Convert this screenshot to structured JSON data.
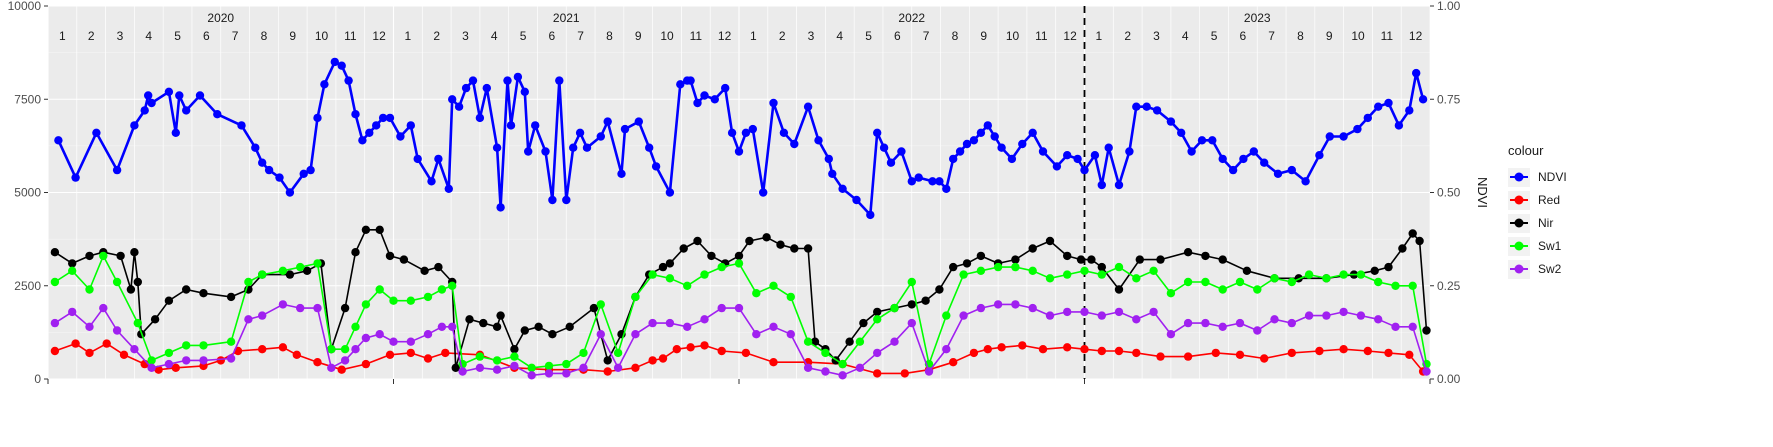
{
  "chart_data": {
    "type": "line",
    "title": "",
    "y_left": {
      "range": [
        0,
        10000
      ],
      "ticks": [
        0,
        2500,
        5000,
        7500,
        10000
      ],
      "tick_labels": [
        "0",
        "2500",
        "5000",
        "7500",
        "10000"
      ]
    },
    "y_right": {
      "label": "NDVI",
      "range": [
        0,
        1
      ],
      "ticks": [
        0,
        0.25,
        0.5,
        0.75,
        1
      ],
      "tick_labels": [
        "0.00",
        "0.25",
        "0.50",
        "0.75",
        "1.00"
      ]
    },
    "x_range": [
      2020.0,
      2024.0
    ],
    "years": [
      {
        "label": "2020",
        "start": 2020.0,
        "end": 2021.0
      },
      {
        "label": "2021",
        "start": 2021.0,
        "end": 2022.0
      },
      {
        "label": "2022",
        "start": 2022.0,
        "end": 2023.0
      },
      {
        "label": "2023",
        "start": 2023.0,
        "end": 2024.0
      }
    ],
    "month_labels": [
      "1",
      "2",
      "3",
      "4",
      "5",
      "6",
      "7",
      "8",
      "9",
      "10",
      "11",
      "12"
    ],
    "vline": 2023.0,
    "grid": true,
    "legend": {
      "title": "colour",
      "position": "right"
    },
    "series": [
      {
        "name": "NDVI",
        "color": "#0000ff",
        "axis": "right",
        "x": [
          2020.03,
          2020.08,
          2020.14,
          2020.2,
          2020.25,
          2020.28,
          2020.29,
          2020.3,
          2020.35,
          2020.37,
          2020.38,
          2020.4,
          2020.44,
          2020.49,
          2020.56,
          2020.6,
          2020.62,
          2020.64,
          2020.67,
          2020.7,
          2020.74,
          2020.76,
          2020.78,
          2020.8,
          2020.83,
          2020.85,
          2020.87,
          2020.89,
          2020.91,
          2020.93,
          2020.95,
          2020.97,
          2020.99,
          2021.02,
          2021.05,
          2021.07,
          2021.11,
          2021.13,
          2021.16,
          2021.17,
          2021.19,
          2021.21,
          2021.23,
          2021.25,
          2021.27,
          2021.3,
          2021.31,
          2021.33,
          2021.34,
          2021.36,
          2021.38,
          2021.39,
          2021.41,
          2021.44,
          2021.46,
          2021.48,
          2021.5,
          2021.52,
          2021.54,
          2021.56,
          2021.6,
          2021.62,
          2021.66,
          2021.67,
          2021.71,
          2021.74,
          2021.76,
          2021.8,
          2021.83,
          2021.85,
          2021.86,
          2021.88,
          2021.9,
          2021.93,
          2021.96,
          2021.98,
          2022.0,
          2022.02,
          2022.04,
          2022.07,
          2022.1,
          2022.13,
          2022.16,
          2022.2,
          2022.23,
          2022.26,
          2022.27,
          2022.3,
          2022.34,
          2022.38,
          2022.4,
          2022.42,
          2022.44,
          2022.47,
          2022.5,
          2022.52,
          2022.56,
          2022.58,
          2022.6,
          2022.62,
          2022.64,
          2022.66,
          2022.68,
          2022.7,
          2022.72,
          2022.74,
          2022.76,
          2022.79,
          2022.82,
          2022.85,
          2022.88,
          2022.92,
          2022.95,
          2022.98,
          2023.0,
          2023.03,
          2023.05,
          2023.07,
          2023.1,
          2023.13,
          2023.15,
          2023.18,
          2023.21,
          2023.25,
          2023.28,
          2023.31,
          2023.34,
          2023.37,
          2023.4,
          2023.43,
          2023.46,
          2023.49,
          2023.52,
          2023.56,
          2023.6,
          2023.64,
          2023.68,
          2023.71,
          2023.75,
          2023.79,
          2023.82,
          2023.85,
          2023.88,
          2023.91,
          2023.94,
          2023.96,
          2023.98
        ],
        "y": [
          0.64,
          0.54,
          0.66,
          0.56,
          0.68,
          0.72,
          0.76,
          0.74,
          0.77,
          0.66,
          0.76,
          0.72,
          0.76,
          0.71,
          0.68,
          0.62,
          0.58,
          0.56,
          0.54,
          0.5,
          0.55,
          0.56,
          0.7,
          0.79,
          0.85,
          0.84,
          0.8,
          0.71,
          0.64,
          0.66,
          0.68,
          0.7,
          0.7,
          0.65,
          0.68,
          0.59,
          0.53,
          0.59,
          0.51,
          0.75,
          0.73,
          0.78,
          0.8,
          0.7,
          0.78,
          0.62,
          0.46,
          0.8,
          0.68,
          0.81,
          0.77,
          0.61,
          0.68,
          0.61,
          0.48,
          0.8,
          0.48,
          0.62,
          0.66,
          0.62,
          0.65,
          0.69,
          0.55,
          0.67,
          0.69,
          0.62,
          0.57,
          0.5,
          0.79,
          0.8,
          0.8,
          0.74,
          0.76,
          0.75,
          0.78,
          0.66,
          0.61,
          0.66,
          0.67,
          0.5,
          0.74,
          0.66,
          0.63,
          0.73,
          0.64,
          0.59,
          0.55,
          0.51,
          0.48,
          0.44,
          0.66,
          0.62,
          0.58,
          0.61,
          0.53,
          0.54,
          0.53,
          0.53,
          0.51,
          0.59,
          0.61,
          0.63,
          0.64,
          0.66,
          0.68,
          0.65,
          0.62,
          0.59,
          0.63,
          0.66,
          0.61,
          0.57,
          0.6,
          0.59,
          0.56,
          0.6,
          0.52,
          0.62,
          0.52,
          0.61,
          0.73,
          0.73,
          0.72,
          0.69,
          0.66,
          0.61,
          0.64,
          0.64,
          0.59,
          0.56,
          0.59,
          0.61,
          0.58,
          0.55,
          0.56,
          0.53,
          0.6,
          0.65,
          0.65,
          0.67,
          0.7,
          0.73,
          0.74,
          0.68,
          0.72,
          0.82,
          0.75
        ]
      },
      {
        "name": "Red",
        "color": "#ff0000",
        "axis": "left",
        "x": [
          2020.02,
          2020.08,
          2020.12,
          2020.17,
          2020.22,
          2020.28,
          2020.32,
          2020.37,
          2020.45,
          2020.5,
          2020.55,
          2020.62,
          2020.68,
          2020.72,
          2020.78,
          2020.85,
          2020.92,
          2020.99,
          2021.05,
          2021.1,
          2021.15,
          2021.25,
          2021.35,
          2021.45,
          2021.55,
          2021.62,
          2021.7,
          2021.75,
          2021.78,
          2021.82,
          2021.86,
          2021.9,
          2021.95,
          2022.02,
          2022.1,
          2022.2,
          2022.3,
          2022.4,
          2022.48,
          2022.55,
          2022.62,
          2022.68,
          2022.72,
          2022.76,
          2022.82,
          2022.88,
          2022.95,
          2023.0,
          2023.05,
          2023.1,
          2023.15,
          2023.22,
          2023.3,
          2023.38,
          2023.45,
          2023.52,
          2023.6,
          2023.68,
          2023.75,
          2023.82,
          2023.88,
          2023.94,
          2023.98
        ],
        "y": [
          750,
          950,
          700,
          950,
          650,
          400,
          250,
          300,
          350,
          500,
          750,
          800,
          850,
          650,
          450,
          250,
          400,
          650,
          700,
          550,
          700,
          650,
          300,
          250,
          250,
          200,
          300,
          500,
          550,
          800,
          850,
          900,
          750,
          700,
          450,
          450,
          400,
          150,
          150,
          250,
          450,
          700,
          800,
          850,
          900,
          800,
          850,
          800,
          750,
          750,
          700,
          600,
          600,
          700,
          650,
          550,
          700,
          750,
          800,
          750,
          700,
          650,
          200
        ]
      },
      {
        "name": "Nir",
        "color": "#000000",
        "axis": "left",
        "x": [
          2020.02,
          2020.07,
          2020.12,
          2020.16,
          2020.21,
          2020.24,
          2020.25,
          2020.26,
          2020.27,
          2020.31,
          2020.35,
          2020.4,
          2020.45,
          2020.53,
          2020.58,
          2020.62,
          2020.7,
          2020.75,
          2020.79,
          2020.82,
          2020.86,
          2020.89,
          2020.92,
          2020.96,
          2020.99,
          2021.03,
          2021.09,
          2021.13,
          2021.17,
          2021.18,
          2021.22,
          2021.26,
          2021.3,
          2021.31,
          2021.35,
          2021.38,
          2021.42,
          2021.46,
          2021.51,
          2021.58,
          2021.62,
          2021.66,
          2021.7,
          2021.74,
          2021.78,
          2021.8,
          2021.84,
          2021.88,
          2021.92,
          2021.96,
          2022.0,
          2022.03,
          2022.08,
          2022.12,
          2022.16,
          2022.2,
          2022.22,
          2022.25,
          2022.28,
          2022.32,
          2022.36,
          2022.4,
          2022.45,
          2022.5,
          2022.54,
          2022.58,
          2022.62,
          2022.66,
          2022.7,
          2022.75,
          2022.8,
          2022.85,
          2022.9,
          2022.95,
          2022.99,
          2023.02,
          2023.05,
          2023.1,
          2023.16,
          2023.22,
          2023.3,
          2023.35,
          2023.4,
          2023.47,
          2023.55,
          2023.62,
          2023.7,
          2023.78,
          2023.84,
          2023.88,
          2023.92,
          2023.95,
          2023.97,
          2023.99
        ],
        "y": [
          3400,
          3100,
          3300,
          3400,
          3300,
          2400,
          3400,
          2600,
          1200,
          1600,
          2100,
          2400,
          2300,
          2200,
          2400,
          2800,
          2800,
          2900,
          3100,
          800,
          1900,
          3400,
          4000,
          4000,
          3300,
          3200,
          2900,
          3000,
          2600,
          300,
          1600,
          1500,
          1400,
          1700,
          800,
          1300,
          1400,
          1200,
          1400,
          1900,
          500,
          1200,
          2200,
          2800,
          3000,
          3100,
          3500,
          3700,
          3300,
          3100,
          3300,
          3700,
          3800,
          3600,
          3500,
          3500,
          1000,
          800,
          500,
          1000,
          1500,
          1800,
          1900,
          2000,
          2100,
          2400,
          3000,
          3100,
          3300,
          3100,
          3200,
          3500,
          3700,
          3300,
          3200,
          3200,
          3000,
          2400,
          3200,
          3200,
          3400,
          3300,
          3200,
          2900,
          2700,
          2700,
          2700,
          2800,
          2900,
          3000,
          3500,
          3900,
          3700,
          1300
        ]
      },
      {
        "name": "Sw1",
        "color": "#00ff00",
        "axis": "left",
        "x": [
          2020.02,
          2020.07,
          2020.12,
          2020.16,
          2020.2,
          2020.26,
          2020.3,
          2020.35,
          2020.4,
          2020.45,
          2020.53,
          2020.58,
          2020.62,
          2020.68,
          2020.73,
          2020.78,
          2020.82,
          2020.86,
          2020.89,
          2020.92,
          2020.96,
          2021.0,
          2021.05,
          2021.1,
          2021.14,
          2021.17,
          2021.2,
          2021.25,
          2021.3,
          2021.35,
          2021.4,
          2021.45,
          2021.5,
          2021.55,
          2021.6,
          2021.65,
          2021.7,
          2021.75,
          2021.8,
          2021.85,
          2021.9,
          2021.95,
          2022.0,
          2022.05,
          2022.1,
          2022.15,
          2022.2,
          2022.25,
          2022.3,
          2022.35,
          2022.4,
          2022.45,
          2022.5,
          2022.55,
          2022.6,
          2022.65,
          2022.7,
          2022.75,
          2022.8,
          2022.85,
          2022.9,
          2022.95,
          2023.0,
          2023.05,
          2023.1,
          2023.15,
          2023.2,
          2023.25,
          2023.3,
          2023.35,
          2023.4,
          2023.45,
          2023.5,
          2023.55,
          2023.6,
          2023.65,
          2023.7,
          2023.75,
          2023.8,
          2023.85,
          2023.9,
          2023.95,
          2023.99
        ],
        "y": [
          2600,
          2900,
          2400,
          3300,
          2600,
          1500,
          500,
          700,
          900,
          900,
          1000,
          2600,
          2800,
          2900,
          3000,
          3100,
          800,
          800,
          1400,
          2000,
          2400,
          2100,
          2100,
          2200,
          2400,
          2500,
          400,
          600,
          500,
          600,
          300,
          350,
          400,
          700,
          2000,
          700,
          2200,
          2800,
          2700,
          2500,
          2800,
          3000,
          3100,
          2300,
          2500,
          2200,
          1000,
          700,
          400,
          1000,
          1600,
          1900,
          2600,
          400,
          1700,
          2800,
          2900,
          3000,
          3000,
          2900,
          2700,
          2800,
          2900,
          2800,
          3000,
          2700,
          2900,
          2300,
          2600,
          2600,
          2400,
          2600,
          2400,
          2700,
          2600,
          2800,
          2700,
          2800,
          2800,
          2600,
          2500,
          2500,
          400
        ]
      },
      {
        "name": "Sw2",
        "color": "#a020f0",
        "axis": "left",
        "x": [
          2020.02,
          2020.07,
          2020.12,
          2020.16,
          2020.2,
          2020.25,
          2020.3,
          2020.35,
          2020.4,
          2020.45,
          2020.53,
          2020.58,
          2020.62,
          2020.68,
          2020.73,
          2020.78,
          2020.82,
          2020.86,
          2020.89,
          2020.92,
          2020.96,
          2021.0,
          2021.05,
          2021.1,
          2021.14,
          2021.17,
          2021.2,
          2021.25,
          2021.3,
          2021.35,
          2021.4,
          2021.45,
          2021.5,
          2021.55,
          2021.6,
          2021.65,
          2021.7,
          2021.75,
          2021.8,
          2021.85,
          2021.9,
          2021.95,
          2022.0,
          2022.05,
          2022.1,
          2022.15,
          2022.2,
          2022.25,
          2022.3,
          2022.35,
          2022.4,
          2022.45,
          2022.5,
          2022.55,
          2022.6,
          2022.65,
          2022.7,
          2022.75,
          2022.8,
          2022.85,
          2022.9,
          2022.95,
          2023.0,
          2023.05,
          2023.1,
          2023.15,
          2023.2,
          2023.25,
          2023.3,
          2023.35,
          2023.4,
          2023.45,
          2023.5,
          2023.55,
          2023.6,
          2023.65,
          2023.7,
          2023.75,
          2023.8,
          2023.85,
          2023.9,
          2023.95,
          2023.99
        ],
        "y": [
          1500,
          1800,
          1400,
          1900,
          1300,
          800,
          300,
          400,
          500,
          500,
          550,
          1600,
          1700,
          2000,
          1900,
          1900,
          300,
          500,
          800,
          1100,
          1200,
          1000,
          1000,
          1200,
          1400,
          1400,
          200,
          300,
          250,
          350,
          100,
          150,
          150,
          300,
          1200,
          300,
          1200,
          1500,
          1500,
          1400,
          1600,
          1900,
          1900,
          1200,
          1400,
          1200,
          300,
          200,
          100,
          300,
          700,
          1000,
          1500,
          200,
          800,
          1700,
          1900,
          2000,
          2000,
          1900,
          1700,
          1800,
          1800,
          1700,
          1800,
          1600,
          1800,
          1200,
          1500,
          1500,
          1400,
          1500,
          1300,
          1600,
          1500,
          1700,
          1700,
          1800,
          1700,
          1600,
          1400,
          1400,
          200
        ]
      }
    ]
  }
}
